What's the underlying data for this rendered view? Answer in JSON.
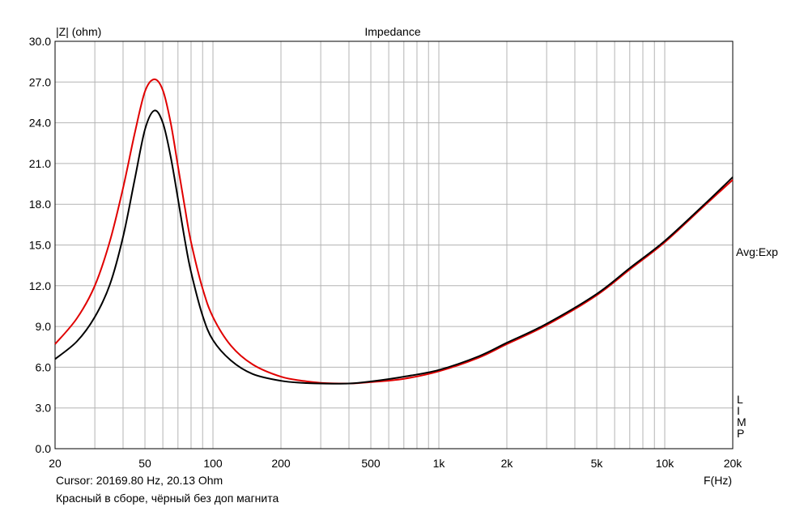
{
  "chart_data": {
    "type": "line",
    "title": "Impedance",
    "ylabel": "|Z| (ohm)",
    "xlabel": "F(Hz)",
    "x_scale": "log",
    "xlim": [
      20,
      20000
    ],
    "ylim": [
      0,
      30
    ],
    "grid": true,
    "y_ticks": [
      "0.0",
      "3.0",
      "6.0",
      "9.0",
      "12.0",
      "15.0",
      "18.0",
      "21.0",
      "24.0",
      "27.0",
      "30.0"
    ],
    "x_tick_labels": [
      {
        "value": 20,
        "label": "20"
      },
      {
        "value": 50,
        "label": "50"
      },
      {
        "value": 100,
        "label": "100"
      },
      {
        "value": 200,
        "label": "200"
      },
      {
        "value": 500,
        "label": "500"
      },
      {
        "value": 1000,
        "label": "1k"
      },
      {
        "value": 2000,
        "label": "2k"
      },
      {
        "value": 5000,
        "label": "5k"
      },
      {
        "value": 10000,
        "label": "10k"
      },
      {
        "value": 20000,
        "label": "20k"
      }
    ],
    "right_label": "Avg:Exp",
    "right_vertical_label": "LIMP",
    "series": [
      {
        "color": "#e00000",
        "points": [
          [
            20,
            7.7
          ],
          [
            25,
            9.6
          ],
          [
            30,
            12.0
          ],
          [
            35,
            15.3
          ],
          [
            40,
            19.2
          ],
          [
            45,
            23.2
          ],
          [
            50,
            26.3
          ],
          [
            55,
            27.2
          ],
          [
            60,
            26.4
          ],
          [
            65,
            24.0
          ],
          [
            70,
            20.8
          ],
          [
            75,
            17.8
          ],
          [
            80,
            15.2
          ],
          [
            90,
            11.8
          ],
          [
            100,
            9.7
          ],
          [
            120,
            7.6
          ],
          [
            150,
            6.2
          ],
          [
            200,
            5.3
          ],
          [
            250,
            5.0
          ],
          [
            300,
            4.85
          ],
          [
            400,
            4.8
          ],
          [
            500,
            4.9
          ],
          [
            700,
            5.15
          ],
          [
            1000,
            5.7
          ],
          [
            1500,
            6.7
          ],
          [
            2000,
            7.7
          ],
          [
            3000,
            9.1
          ],
          [
            5000,
            11.3
          ],
          [
            7000,
            13.2
          ],
          [
            10000,
            15.2
          ],
          [
            15000,
            17.9
          ],
          [
            20000,
            19.8
          ]
        ]
      },
      {
        "color": "#000000",
        "points": [
          [
            20,
            6.6
          ],
          [
            25,
            7.9
          ],
          [
            30,
            9.7
          ],
          [
            35,
            12.1
          ],
          [
            40,
            15.6
          ],
          [
            45,
            19.8
          ],
          [
            50,
            23.5
          ],
          [
            55,
            24.9
          ],
          [
            60,
            24.0
          ],
          [
            65,
            21.5
          ],
          [
            70,
            18.4
          ],
          [
            75,
            15.4
          ],
          [
            80,
            13.0
          ],
          [
            90,
            9.8
          ],
          [
            100,
            8.0
          ],
          [
            120,
            6.5
          ],
          [
            150,
            5.5
          ],
          [
            200,
            5.0
          ],
          [
            250,
            4.85
          ],
          [
            300,
            4.8
          ],
          [
            400,
            4.8
          ],
          [
            500,
            4.95
          ],
          [
            700,
            5.3
          ],
          [
            1000,
            5.8
          ],
          [
            1500,
            6.8
          ],
          [
            2000,
            7.8
          ],
          [
            3000,
            9.2
          ],
          [
            5000,
            11.4
          ],
          [
            7000,
            13.3
          ],
          [
            10000,
            15.3
          ],
          [
            15000,
            18.0
          ],
          [
            20000,
            20.0
          ]
        ]
      }
    ]
  },
  "cursor_text": "Cursor: 20169.80 Hz, 20.13 Ohm",
  "caption": "Красный в сборе, чёрный без доп магнита"
}
